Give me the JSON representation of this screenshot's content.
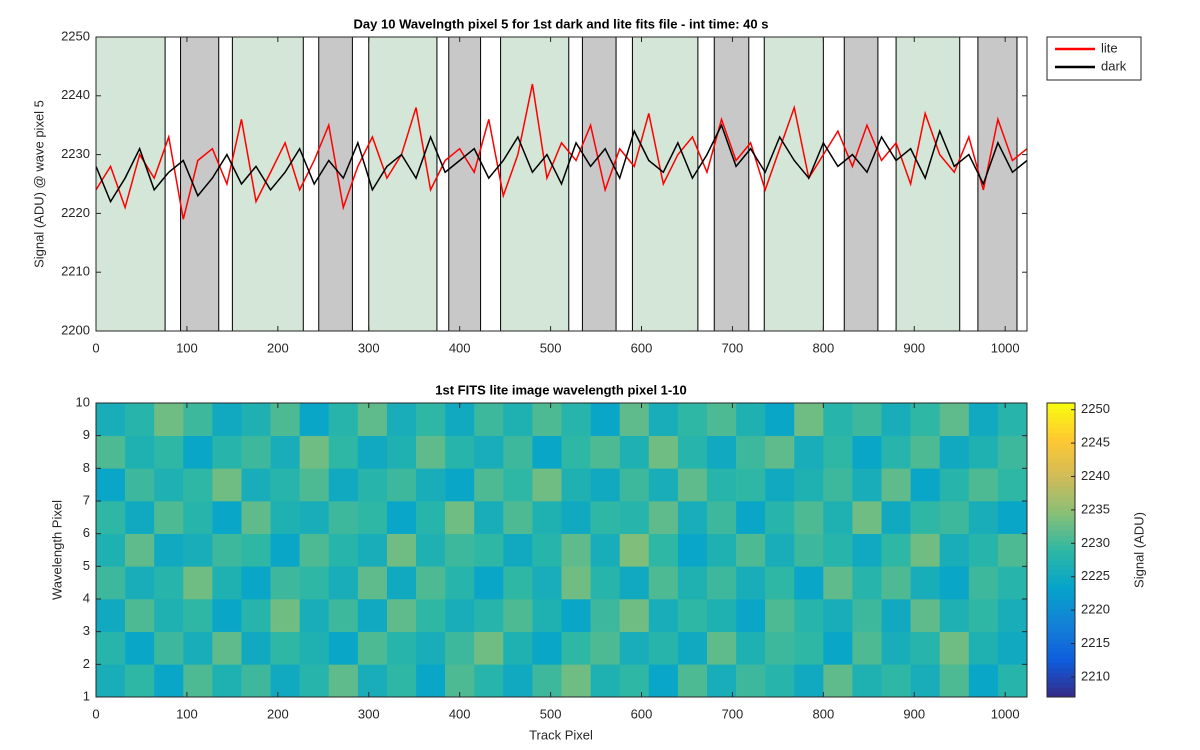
{
  "chart_data": [
    {
      "type": "line",
      "title": "Day 10 Wavelngth pixel 5 for 1st dark and lite fits file - int time: 40 s",
      "ylabel": "Signal (ADU) @ wave pixel 5",
      "x": [
        0,
        16,
        32,
        48,
        64,
        80,
        96,
        112,
        128,
        144,
        160,
        176,
        192,
        208,
        224,
        240,
        256,
        272,
        288,
        304,
        320,
        336,
        352,
        368,
        384,
        400,
        416,
        432,
        448,
        464,
        480,
        496,
        512,
        528,
        544,
        560,
        576,
        592,
        608,
        624,
        640,
        656,
        672,
        688,
        704,
        720,
        736,
        752,
        768,
        784,
        800,
        816,
        832,
        848,
        864,
        880,
        896,
        912,
        928,
        944,
        960,
        976,
        992,
        1008,
        1024
      ],
      "series": [
        {
          "name": "lite",
          "color": "#ff0000",
          "values": [
            2224,
            2228,
            2221,
            2230,
            2226,
            2233,
            2219,
            2229,
            2231,
            2225,
            2236,
            2222,
            2227,
            2232,
            2224,
            2229,
            2235,
            2221,
            2228,
            2233,
            2226,
            2230,
            2238,
            2224,
            2229,
            2231,
            2227,
            2236,
            2223,
            2230,
            2242,
            2226,
            2232,
            2229,
            2235,
            2224,
            2231,
            2228,
            2237,
            2225,
            2230,
            2233,
            2227,
            2236,
            2229,
            2232,
            2224,
            2231,
            2238,
            2226,
            2230,
            2234,
            2228,
            2235,
            2229,
            2232,
            2225,
            2237,
            2230,
            2227,
            2233,
            2224,
            2236,
            2229,
            2231
          ]
        },
        {
          "name": "dark",
          "color": "#000000",
          "values": [
            2228,
            2222,
            2226,
            2231,
            2224,
            2227,
            2229,
            2223,
            2226,
            2230,
            2225,
            2228,
            2224,
            2227,
            2231,
            2225,
            2229,
            2226,
            2232,
            2224,
            2228,
            2230,
            2226,
            2233,
            2227,
            2229,
            2231,
            2226,
            2229,
            2233,
            2227,
            2230,
            2225,
            2232,
            2228,
            2231,
            2226,
            2234,
            2229,
            2227,
            2232,
            2226,
            2230,
            2235,
            2228,
            2231,
            2227,
            2233,
            2229,
            2226,
            2232,
            2228,
            2230,
            2227,
            2233,
            2229,
            2231,
            2226,
            2234,
            2228,
            2230,
            2225,
            2232,
            2227,
            2229
          ]
        }
      ],
      "regions": [
        {
          "start": 0,
          "end": 76,
          "color": "#d4e6d7"
        },
        {
          "start": 93,
          "end": 135,
          "color": "#c8c8c8"
        },
        {
          "start": 150,
          "end": 228,
          "color": "#d4e6d7"
        },
        {
          "start": 245,
          "end": 282,
          "color": "#c8c8c8"
        },
        {
          "start": 300,
          "end": 375,
          "color": "#d4e6d7"
        },
        {
          "start": 388,
          "end": 423,
          "color": "#c8c8c8"
        },
        {
          "start": 445,
          "end": 520,
          "color": "#d4e6d7"
        },
        {
          "start": 535,
          "end": 572,
          "color": "#c8c8c8"
        },
        {
          "start": 590,
          "end": 662,
          "color": "#d4e6d7"
        },
        {
          "start": 680,
          "end": 718,
          "color": "#c8c8c8"
        },
        {
          "start": 735,
          "end": 800,
          "color": "#d4e6d7"
        },
        {
          "start": 823,
          "end": 860,
          "color": "#c8c8c8"
        },
        {
          "start": 880,
          "end": 950,
          "color": "#d4e6d7"
        },
        {
          "start": 970,
          "end": 1013,
          "color": "#c8c8c8"
        }
      ],
      "xlim": [
        0,
        1024
      ],
      "xticks": [
        0,
        100,
        200,
        300,
        400,
        500,
        600,
        700,
        800,
        900,
        1000
      ],
      "ylim": [
        2200,
        2250
      ],
      "yticks": [
        2200,
        2210,
        2220,
        2230,
        2240,
        2250
      ],
      "legend": "northeast-outside"
    },
    {
      "type": "heatmap",
      "title": "1st FITS lite image wavelength pixel 1-10",
      "xlabel": "Track Pixel",
      "ylabel": "Wavelength Pixel",
      "clabel": "Signal (ADU)",
      "bins": [
        0,
        32,
        64,
        96,
        128,
        160,
        192,
        224,
        256,
        288,
        320,
        352,
        384,
        416,
        448,
        480,
        512,
        544,
        576,
        608,
        640,
        672,
        704,
        736,
        768,
        800,
        832,
        864,
        896,
        928,
        960,
        992,
        1024
      ],
      "ybins": [
        1,
        2,
        3,
        4,
        5,
        6,
        7,
        8,
        9,
        10
      ],
      "z": [
        [
          2226,
          2229,
          2224,
          2231,
          2227,
          2230,
          2225,
          2228,
          2232,
          2226,
          2229,
          2224,
          2231,
          2228,
          2225,
          2230,
          2233,
          2227,
          2229,
          2224,
          2231,
          2226,
          2230,
          2228,
          2225,
          2232,
          2227,
          2229,
          2226,
          2231,
          2224,
          2228
        ],
        [
          2228,
          2224,
          2230,
          2226,
          2232,
          2225,
          2229,
          2227,
          2224,
          2231,
          2228,
          2226,
          2230,
          2233,
          2227,
          2224,
          2229,
          2231,
          2226,
          2228,
          2225,
          2232,
          2227,
          2230,
          2229,
          2224,
          2231,
          2226,
          2228,
          2233,
          2227,
          2225
        ],
        [
          2225,
          2231,
          2227,
          2229,
          2224,
          2228,
          2233,
          2226,
          2230,
          2225,
          2232,
          2229,
          2226,
          2228,
          2231,
          2227,
          2224,
          2230,
          2233,
          2226,
          2229,
          2227,
          2224,
          2231,
          2228,
          2226,
          2230,
          2225,
          2232,
          2227,
          2229,
          2226
        ],
        [
          2230,
          2226,
          2228,
          2233,
          2227,
          2224,
          2230,
          2229,
          2226,
          2232,
          2225,
          2231,
          2228,
          2224,
          2229,
          2226,
          2233,
          2228,
          2225,
          2231,
          2227,
          2230,
          2226,
          2229,
          2224,
          2232,
          2228,
          2231,
          2226,
          2224,
          2230,
          2228
        ],
        [
          2227,
          2232,
          2225,
          2226,
          2230,
          2229,
          2224,
          2231,
          2228,
          2226,
          2233,
          2227,
          2230,
          2229,
          2225,
          2228,
          2232,
          2226,
          2234,
          2229,
          2224,
          2227,
          2231,
          2226,
          2230,
          2228,
          2225,
          2229,
          2233,
          2226,
          2228,
          2231
        ],
        [
          2229,
          2225,
          2231,
          2228,
          2224,
          2232,
          2227,
          2226,
          2230,
          2229,
          2224,
          2228,
          2233,
          2226,
          2231,
          2227,
          2225,
          2229,
          2228,
          2232,
          2226,
          2230,
          2224,
          2228,
          2231,
          2227,
          2233,
          2225,
          2229,
          2230,
          2226,
          2224
        ],
        [
          2224,
          2230,
          2227,
          2229,
          2233,
          2226,
          2228,
          2231,
          2225,
          2228,
          2230,
          2226,
          2224,
          2231,
          2229,
          2233,
          2227,
          2225,
          2230,
          2226,
          2232,
          2228,
          2229,
          2225,
          2227,
          2230,
          2226,
          2232,
          2224,
          2228,
          2231,
          2229
        ],
        [
          2231,
          2227,
          2229,
          2224,
          2228,
          2230,
          2226,
          2233,
          2229,
          2225,
          2227,
          2232,
          2228,
          2226,
          2230,
          2224,
          2229,
          2231,
          2227,
          2233,
          2228,
          2225,
          2230,
          2232,
          2226,
          2229,
          2224,
          2228,
          2231,
          2225,
          2227,
          2230
        ],
        [
          2226,
          2228,
          2233,
          2230,
          2225,
          2227,
          2231,
          2224,
          2228,
          2232,
          2226,
          2229,
          2225,
          2230,
          2227,
          2231,
          2228,
          2224,
          2232,
          2226,
          2229,
          2231,
          2227,
          2224,
          2233,
          2228,
          2230,
          2226,
          2229,
          2232,
          2225,
          2228
        ]
      ],
      "colormap": [
        "#352a87",
        "#0f5cdd",
        "#1481d6",
        "#06a4ca",
        "#2eb7a4",
        "#87bf77",
        "#d1bb59",
        "#fec832",
        "#f9fb0e"
      ],
      "clim": [
        2207,
        2251
      ],
      "cticks": [
        2210,
        2215,
        2220,
        2225,
        2230,
        2235,
        2240,
        2245,
        2250
      ],
      "xlim": [
        0,
        1024
      ],
      "xticks": [
        0,
        100,
        200,
        300,
        400,
        500,
        600,
        700,
        800,
        900,
        1000
      ],
      "ylim": [
        1,
        10
      ],
      "yticks": [
        1,
        2,
        3,
        4,
        5,
        6,
        7,
        8,
        9,
        10
      ]
    }
  ]
}
